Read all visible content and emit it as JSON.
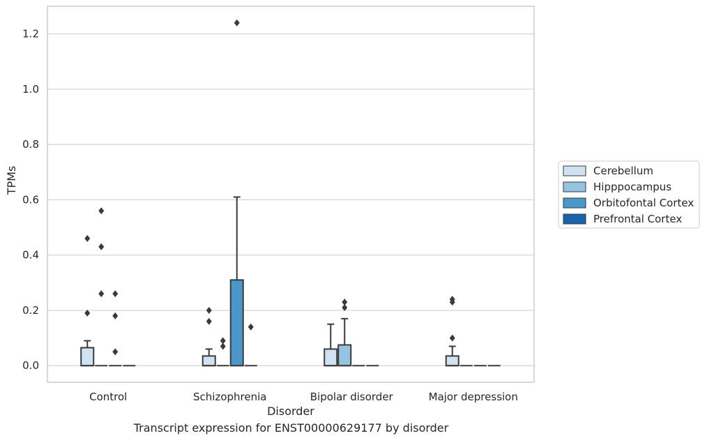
{
  "caption": "Transcript expression for ENST00000629177 by disorder",
  "chart_data": {
    "type": "box",
    "xlabel": "Disorder",
    "ylabel": "TPMs",
    "ylim": [
      -0.06,
      1.3
    ],
    "yticks": [
      0.0,
      0.2,
      0.4,
      0.6,
      0.8,
      1.0,
      1.2
    ],
    "ytick_labels": [
      "0.0",
      "0.2",
      "0.4",
      "0.6",
      "0.8",
      "1.0",
      "1.2"
    ],
    "grid": "horizontal",
    "legend_position": "right",
    "categories": [
      "Control",
      "Schizophrenia",
      "Bipolar disorder",
      "Major depression"
    ],
    "series": [
      {
        "name": "Cerebellum",
        "color": "#d0e1f2",
        "boxes": [
          {
            "q1": 0,
            "median": 0,
            "q3": 0.065,
            "whislo": 0,
            "whishi": 0.09,
            "fliers": [
              0.19,
              0.46
            ]
          },
          {
            "q1": 0,
            "median": 0,
            "q3": 0.035,
            "whislo": 0,
            "whishi": 0.06,
            "fliers": [
              0.16,
              0.2
            ]
          },
          {
            "q1": 0,
            "median": 0,
            "q3": 0.06,
            "whislo": 0,
            "whishi": 0.15,
            "fliers": []
          },
          {
            "q1": 0,
            "median": 0,
            "q3": 0.035,
            "whislo": 0,
            "whishi": 0.07,
            "fliers": [
              0.1,
              0.23,
              0.24
            ]
          }
        ]
      },
      {
        "name": "Hipppocampus",
        "color": "#94c4df",
        "boxes": [
          {
            "q1": 0,
            "median": 0,
            "q3": 0,
            "whislo": 0,
            "whishi": 0,
            "fliers": [
              0.26,
              0.43,
              0.56
            ]
          },
          {
            "q1": 0,
            "median": 0,
            "q3": 0,
            "whislo": 0,
            "whishi": 0,
            "fliers": [
              0.07,
              0.09
            ]
          },
          {
            "q1": 0,
            "median": 0,
            "q3": 0.075,
            "whislo": 0,
            "whishi": 0.17,
            "fliers": [
              0.21,
              0.23
            ]
          },
          {
            "q1": 0,
            "median": 0,
            "q3": 0,
            "whislo": 0,
            "whishi": 0,
            "fliers": []
          }
        ]
      },
      {
        "name": "Orbitofontal Cortex",
        "color": "#4a98c9",
        "boxes": [
          {
            "q1": 0,
            "median": 0,
            "q3": 0,
            "whislo": 0,
            "whishi": 0,
            "fliers": [
              0.05,
              0.18,
              0.26
            ]
          },
          {
            "q1": 0,
            "median": 0,
            "q3": 0.31,
            "whislo": 0,
            "whishi": 0.61,
            "fliers": [
              1.24
            ]
          },
          {
            "q1": 0,
            "median": 0,
            "q3": 0,
            "whislo": 0,
            "whishi": 0,
            "fliers": []
          },
          {
            "q1": 0,
            "median": 0,
            "q3": 0,
            "whislo": 0,
            "whishi": 0,
            "fliers": []
          }
        ]
      },
      {
        "name": "Prefrontal Cortex",
        "color": "#1764ab",
        "boxes": [
          {
            "q1": 0,
            "median": 0,
            "q3": 0,
            "whislo": 0,
            "whishi": 0,
            "fliers": []
          },
          {
            "q1": 0,
            "median": 0,
            "q3": 0,
            "whislo": 0,
            "whishi": 0,
            "fliers": [
              0.14
            ]
          },
          {
            "q1": 0,
            "median": 0,
            "q3": 0,
            "whislo": 0,
            "whishi": 0,
            "fliers": []
          },
          {
            "q1": 0,
            "median": 0,
            "q3": 0,
            "whislo": 0,
            "whishi": 0,
            "fliers": []
          }
        ]
      }
    ]
  }
}
